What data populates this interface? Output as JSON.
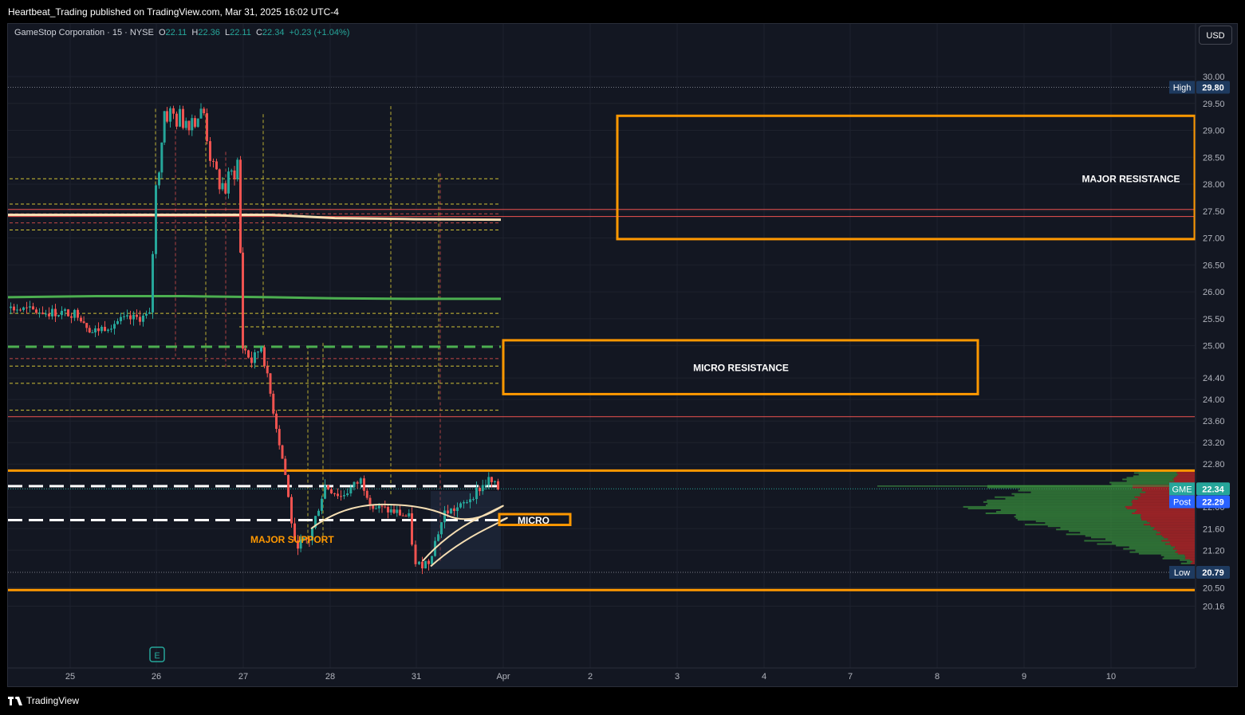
{
  "header": {
    "published": "Heartbeat_Trading published on TradingView.com, Mar 31, 2025 16:02 UTC-4"
  },
  "legend": {
    "symbol": "GameStop Corporation · 15 · NYSE",
    "o_label": "O",
    "o_value": "22.11",
    "h_label": "H",
    "h_value": "22.36",
    "l_label": "L",
    "l_value": "22.11",
    "c_label": "C",
    "c_value": "22.34",
    "change": "+0.23 (+1.04%)"
  },
  "toolbar": {
    "currency": "USD"
  },
  "footer": {
    "brand": "TradingView"
  },
  "colors": {
    "background": "#131722",
    "orange": "#ff9800",
    "green_ma": "#4caf50",
    "cream_ma": "#f5deb3",
    "candle_up": "#26a69a",
    "candle_down": "#ef5350",
    "label_blue": "#1e3a5f"
  },
  "chart_data": {
    "type": "candlestick",
    "symbol": "GME",
    "timeframe": "15",
    "exchange": "NYSE",
    "ylim": [
      20.16,
      30.0
    ],
    "y_ticks": [
      30.0,
      29.5,
      29.0,
      28.5,
      28.0,
      27.5,
      27.0,
      26.5,
      26.0,
      25.5,
      25.0,
      24.4,
      24.0,
      23.6,
      23.2,
      22.8,
      22.0,
      21.6,
      21.2,
      20.5,
      20.16
    ],
    "x_ticks": [
      "25",
      "26",
      "27",
      "28",
      "31",
      "Apr",
      "2",
      "3",
      "4",
      "7",
      "8",
      "9",
      "10"
    ],
    "price_labels": [
      {
        "name": "High",
        "value": "29.80",
        "color": "#1e3a5f"
      },
      {
        "name": "GME",
        "value": "22.34",
        "color": "#26a69a"
      },
      {
        "name": "Post",
        "value": "22.29",
        "color": "#2962ff"
      },
      {
        "name": "Low",
        "value": "20.79",
        "color": "#1e3a5f"
      }
    ],
    "zones": [
      {
        "label": "MAJOR RESISTANCE",
        "top": 29.27,
        "bottom": 26.98
      },
      {
        "label": "MICRO RESISTANCE",
        "top": 25.1,
        "bottom": 24.1
      },
      {
        "label": "MICRO",
        "top": 21.87,
        "bottom": 21.67
      }
    ],
    "annotations": [
      {
        "text": "MAJOR SUPPORT"
      }
    ],
    "horizontal_lines": [
      {
        "price": 22.68,
        "color": "#ff9800",
        "style": "solid"
      },
      {
        "price": 20.46,
        "color": "#ff9800",
        "style": "solid"
      },
      {
        "price": 27.53,
        "color": "#ef5350",
        "style": "thin"
      },
      {
        "price": 27.4,
        "color": "#ef5350",
        "style": "thin"
      },
      {
        "price": 23.68,
        "color": "#ef5350",
        "style": "thin"
      },
      {
        "price": 24.98,
        "color": "#4caf50",
        "style": "dashed"
      },
      {
        "price": 22.39,
        "color": "#ffffff",
        "style": "dashed"
      },
      {
        "price": 21.76,
        "color": "#ffffff",
        "style": "dashed"
      }
    ],
    "moving_averages": [
      {
        "color": "#f5deb3",
        "values": [
          27.43,
          27.43,
          27.43,
          27.43,
          27.37,
          27.35,
          27.34
        ]
      },
      {
        "color": "#4caf50",
        "values": [
          25.9,
          25.92,
          25.92,
          25.9,
          25.88,
          25.87,
          25.87
        ]
      }
    ],
    "candles_summary": {
      "period_high": 29.8,
      "period_low": 20.79,
      "last": 22.34
    }
  }
}
